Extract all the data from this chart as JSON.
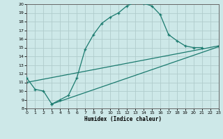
{
  "title": "",
  "xlabel": "Humidex (Indice chaleur)",
  "bg_color": "#cde8e8",
  "grid_color": "#b0cccc",
  "line_color": "#1a7a6e",
  "xlim": [
    0,
    23
  ],
  "ylim": [
    8,
    20
  ],
  "xticks": [
    0,
    1,
    2,
    3,
    4,
    5,
    6,
    7,
    8,
    9,
    10,
    11,
    12,
    13,
    14,
    15,
    16,
    17,
    18,
    19,
    20,
    21,
    22,
    23
  ],
  "yticks": [
    8,
    9,
    10,
    11,
    12,
    13,
    14,
    15,
    16,
    17,
    18,
    19,
    20
  ],
  "curve1_x": [
    0,
    1,
    2,
    3,
    4,
    5,
    6,
    7,
    8,
    9,
    10,
    11,
    12,
    13,
    14,
    15,
    16,
    17,
    18,
    19,
    20,
    21
  ],
  "curve1_y": [
    11.5,
    10.2,
    10.0,
    8.5,
    9.0,
    9.5,
    11.5,
    14.8,
    16.5,
    17.8,
    18.5,
    19.0,
    19.8,
    20.2,
    20.1,
    19.8,
    18.8,
    16.5,
    15.8,
    15.2,
    15.0,
    15.0
  ],
  "curve2_x": [
    0,
    23
  ],
  "curve2_y": [
    11.0,
    15.2
  ],
  "curve3_x": [
    3,
    23
  ],
  "curve3_y": [
    8.5,
    15.1
  ]
}
